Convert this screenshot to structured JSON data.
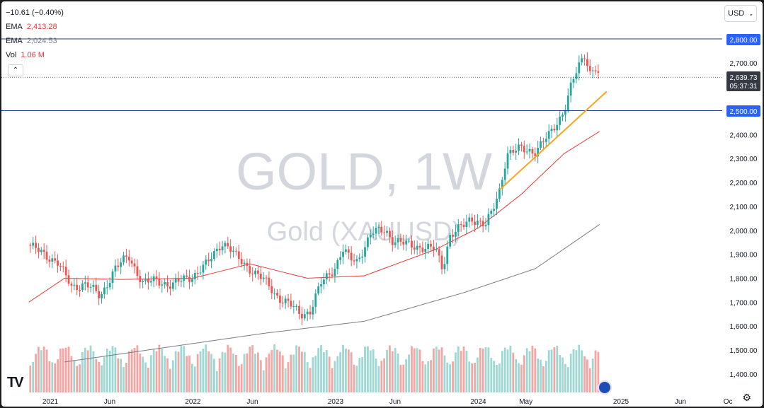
{
  "symbol_watermark": {
    "title": "GOLD, 1W",
    "subtitle": "Gold (XAUUSD)"
  },
  "legend": {
    "change": "−10.61 (−0.40%)",
    "ema1_label": "EMA",
    "ema1_value": "2,413.28",
    "ema2_label": "EMA",
    "ema2_value": "2,024.53",
    "vol_label": "Vol",
    "vol_value": "1.06 M"
  },
  "currency": {
    "label": "USD"
  },
  "price_labels": {
    "level_high": "2,800.00",
    "level_low": "2,500.00",
    "last_price": "2,639.73",
    "countdown": "05:37:31"
  },
  "colors": {
    "up": "#26a69a",
    "down": "#ef5350",
    "ema_fast": "#e53935",
    "ema_slow": "#787b86",
    "trendline": "#f5a623",
    "level": "#2962ff"
  },
  "chart_data": {
    "type": "candlestick",
    "title": "GOLD, 1W",
    "subtitle": "Gold (XAUUSD)",
    "y_axis_ticks": [
      1400,
      1500,
      1600,
      1700,
      1800,
      1900,
      2000,
      2100,
      2200,
      2300,
      2400,
      2500,
      2600,
      2700,
      2800
    ],
    "y_tick_labels": [
      "1,400.00",
      "1,500.00",
      "1,600.00",
      "1,700.00",
      "1,800.00",
      "1,900.00",
      "2,000.00",
      "2,100.00",
      "2,200.00",
      "2,300.00",
      "2,400.00",
      "2,500.00",
      "2,600.00",
      "2,700.00",
      "2,800.00"
    ],
    "x_tick_labels": [
      {
        "label": "2021",
        "t": 0.0
      },
      {
        "label": "Jun",
        "t": 0.4167
      },
      {
        "label": "2022",
        "t": 1.0
      },
      {
        "label": "Jun",
        "t": 1.4167
      },
      {
        "label": "2023",
        "t": 2.0
      },
      {
        "label": "Jun",
        "t": 2.4167
      },
      {
        "label": "2024",
        "t": 3.0
      },
      {
        "label": "May",
        "t": 3.3333
      },
      {
        "label": "2025",
        "t": 4.0
      },
      {
        "label": "Jun",
        "t": 4.4167
      },
      {
        "label": "Oc",
        "t": 4.75
      }
    ],
    "horizontal_levels": [
      2800,
      2500
    ],
    "last_price": 2639.73,
    "price_series_anchors": [
      [
        -0.15,
        1940
      ],
      [
        -0.05,
        1900
      ],
      [
        0.05,
        1870
      ],
      [
        0.15,
        1760
      ],
      [
        0.25,
        1780
      ],
      [
        0.35,
        1720
      ],
      [
        0.45,
        1840
      ],
      [
        0.55,
        1890
      ],
      [
        0.65,
        1780
      ],
      [
        0.75,
        1790
      ],
      [
        0.85,
        1770
      ],
      [
        0.95,
        1800
      ],
      [
        1.0,
        1810
      ],
      [
        1.1,
        1860
      ],
      [
        1.2,
        1950
      ],
      [
        1.25,
        1930
      ],
      [
        1.3,
        1890
      ],
      [
        1.4,
        1840
      ],
      [
        1.5,
        1790
      ],
      [
        1.6,
        1720
      ],
      [
        1.7,
        1680
      ],
      [
        1.75,
        1650
      ],
      [
        1.82,
        1660
      ],
      [
        1.9,
        1780
      ],
      [
        2.0,
        1850
      ],
      [
        2.05,
        1920
      ],
      [
        2.1,
        1880
      ],
      [
        2.15,
        1870
      ],
      [
        2.25,
        1990
      ],
      [
        2.35,
        2000
      ],
      [
        2.4,
        1960
      ],
      [
        2.5,
        1940
      ],
      [
        2.6,
        1930
      ],
      [
        2.7,
        1920
      ],
      [
        2.75,
        1840
      ],
      [
        2.8,
        1980
      ],
      [
        2.9,
        2020
      ],
      [
        2.95,
        2050
      ],
      [
        3.0,
        2040
      ],
      [
        3.05,
        2020
      ],
      [
        3.1,
        2080
      ],
      [
        3.15,
        2170
      ],
      [
        3.2,
        2320
      ],
      [
        3.3,
        2340
      ],
      [
        3.4,
        2330
      ],
      [
        3.5,
        2400
      ],
      [
        3.55,
        2450
      ],
      [
        3.6,
        2500
      ],
      [
        3.65,
        2600
      ],
      [
        3.7,
        2680
      ],
      [
        3.75,
        2740
      ],
      [
        3.78,
        2660
      ],
      [
        3.82,
        2680
      ],
      [
        3.85,
        2639.73
      ]
    ],
    "ema_fast_anchors": [
      [
        -0.15,
        1700
      ],
      [
        0.1,
        1800
      ],
      [
        0.5,
        1795
      ],
      [
        1.0,
        1800
      ],
      [
        1.4,
        1860
      ],
      [
        1.8,
        1800
      ],
      [
        2.2,
        1810
      ],
      [
        2.7,
        1920
      ],
      [
        3.0,
        2010
      ],
      [
        3.3,
        2150
      ],
      [
        3.6,
        2320
      ],
      [
        3.85,
        2413.28
      ]
    ],
    "ema_slow_anchors": [
      [
        0.1,
        1450
      ],
      [
        0.8,
        1510
      ],
      [
        1.5,
        1570
      ],
      [
        2.2,
        1620
      ],
      [
        2.9,
        1740
      ],
      [
        3.4,
        1840
      ],
      [
        3.85,
        2024.53
      ]
    ],
    "trendline": [
      [
        3.15,
        2170
      ],
      [
        3.9,
        2580
      ]
    ],
    "last_volume": "1.06 M"
  }
}
